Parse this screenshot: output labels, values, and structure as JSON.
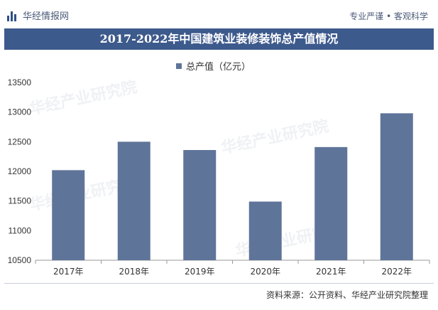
{
  "header": {
    "brand": "华经情报网",
    "slogan": "专业严谨 • 客观科学"
  },
  "title": "2017-2022年中国建筑业装修装饰总产值情况",
  "legend": {
    "series_label": "总产值（亿元）"
  },
  "source": "资料来源：公开资料、华经产业研究院整理",
  "watermark": "华经产业研究院",
  "colors": {
    "bar": "#5f7499",
    "title_bg": "#3d5a8c",
    "axis": "#999999"
  },
  "chart_data": {
    "type": "bar",
    "categories": [
      "2017年",
      "2018年",
      "2019年",
      "2020年",
      "2021年",
      "2022年"
    ],
    "series": [
      {
        "name": "总产值（亿元）",
        "values": [
          12020,
          12500,
          12360,
          11490,
          12410,
          12980
        ]
      }
    ],
    "ylim": [
      10500,
      13500
    ],
    "yticks": [
      10500,
      11000,
      11500,
      12000,
      12500,
      13000,
      13500
    ],
    "grid": false,
    "legend_position": "top"
  }
}
